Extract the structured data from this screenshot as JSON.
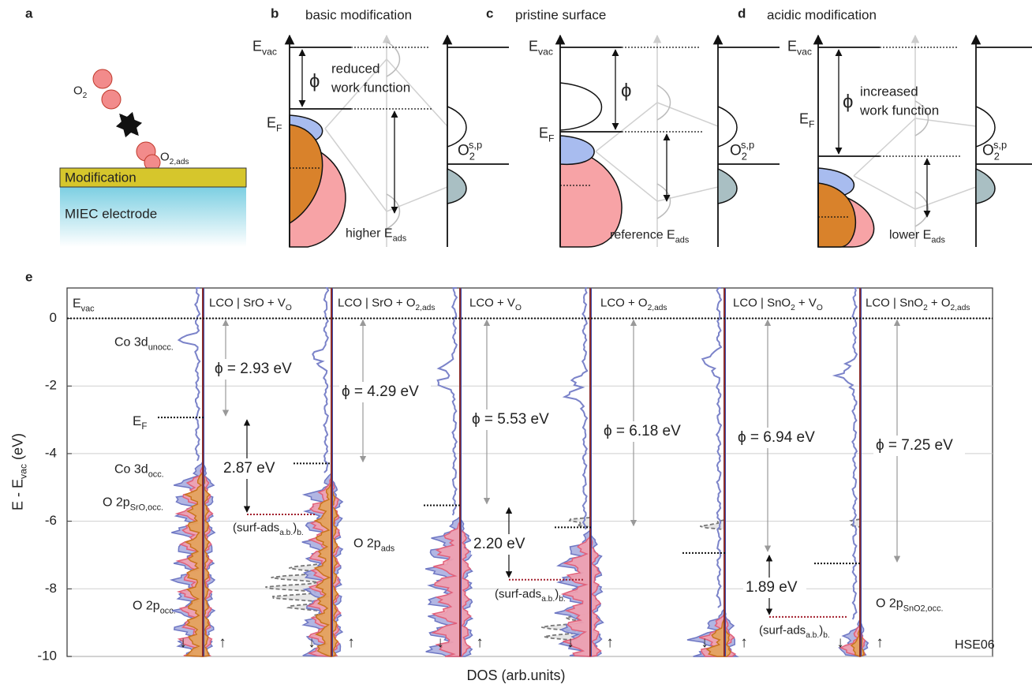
{
  "panel_a": {
    "letter": "a",
    "o2": [
      "O",
      {
        "sub": "2"
      }
    ],
    "o2_ads": [
      "O",
      {
        "sub": "2,ads"
      }
    ],
    "modification": "Modification",
    "electrode": "MIEC electrode"
  },
  "panel_b": {
    "letter": "b",
    "title": "basic modification",
    "evac": [
      "E",
      {
        "sub": "vac"
      }
    ],
    "fermi": [
      "E",
      {
        "sub": "F"
      }
    ],
    "phi": "ϕ",
    "note": [
      "reduced",
      "work function"
    ],
    "eads": [
      "higher E",
      {
        "sub": "ads"
      }
    ],
    "o2": [
      "O",
      {
        "sub": "2"
      },
      {
        "sup": "s,p"
      }
    ]
  },
  "panel_c": {
    "letter": "c",
    "title": "pristine surface",
    "evac": [
      "E",
      {
        "sub": "vac"
      }
    ],
    "fermi": [
      "E",
      {
        "sub": "F"
      }
    ],
    "phi": "ϕ",
    "eads": [
      "reference E",
      {
        "sub": "ads"
      }
    ],
    "o2": [
      "O",
      {
        "sub": "2"
      },
      {
        "sup": "s,p"
      }
    ]
  },
  "panel_d": {
    "letter": "d",
    "title": "acidic modification",
    "evac": [
      "E",
      {
        "sub": "vac"
      }
    ],
    "fermi": [
      "E",
      {
        "sub": "F"
      }
    ],
    "phi": "ϕ",
    "note": [
      "increased",
      "work function"
    ],
    "eads": [
      "lower E",
      {
        "sub": "ads"
      }
    ],
    "o2": [
      "O",
      {
        "sub": "2"
      },
      {
        "sup": "s,p"
      }
    ]
  },
  "chart_data": {
    "type": "dos",
    "letter": "e",
    "y_label": [
      "E - E",
      {
        "sub": "vac"
      },
      " (eV)"
    ],
    "x_label": "DOS (arb.units)",
    "ylim": [
      -10,
      0.9
    ],
    "yticks": [
      -10,
      -8,
      -6,
      -4,
      -2,
      0
    ],
    "grid": true,
    "vacuum_level": 0,
    "vacuum_label": [
      "E",
      {
        "sub": "vac"
      }
    ],
    "fermi_label": [
      "E",
      {
        "sub": "F"
      }
    ],
    "method": "HSE06",
    "spin_labels": [
      "↓",
      "↑"
    ],
    "state_labels": [
      {
        "text": [
          "Co 3d",
          {
            "sub": "unocc."
          }
        ],
        "color": "#6f78c4"
      },
      {
        "text": [
          "Co 3d",
          {
            "sub": "occ."
          }
        ],
        "color": "#6f78c4"
      },
      {
        "text": [
          "O 2p",
          {
            "sub": "SrO,occ."
          }
        ],
        "color": "#c9731d"
      },
      {
        "text": [
          "O 2p",
          {
            "sub": "occ."
          }
        ],
        "color": "#d9536e"
      },
      {
        "text": [
          "O 2p",
          {
            "sub": "ads"
          }
        ],
        "color": "#888888"
      },
      {
        "text": [
          "O 2p",
          {
            "sub": "SnO2,occ."
          }
        ],
        "color": "#c9731d"
      }
    ],
    "columns": [
      {
        "title": [
          "LCO | SrO + V",
          {
            "sub": "O"
          }
        ],
        "work_function": 2.93,
        "work_function_label": "ϕ = 2.93 eV",
        "fermi_level": -2.93,
        "gap": 2.87,
        "gap_label": "2.87 eV",
        "ads_level": -5.8,
        "ads_label": [
          "(surf-ads",
          {
            "sub": "a.b."
          },
          ")",
          {
            "sub": "b."
          }
        ]
      },
      {
        "title": [
          "LCO | SrO + O",
          {
            "sub": "2,ads"
          }
        ],
        "work_function": 4.29,
        "work_function_label": "ϕ = 4.29 eV",
        "fermi_level": -4.29
      },
      {
        "title": [
          "LCO + V",
          {
            "sub": "O"
          }
        ],
        "work_function": 5.53,
        "work_function_label": "ϕ = 5.53 eV",
        "fermi_level": -5.53,
        "gap": 2.2,
        "gap_label": "2.20 eV",
        "ads_level": -7.73,
        "ads_label": [
          "(surf-ads",
          {
            "sub": "a.b."
          },
          ")",
          {
            "sub": "b."
          }
        ]
      },
      {
        "title": [
          "LCO + O",
          {
            "sub": "2,ads"
          }
        ],
        "work_function": 6.18,
        "work_function_label": "ϕ = 6.18 eV",
        "fermi_level": -6.18
      },
      {
        "title": [
          "LCO | SnO",
          {
            "sub": "2"
          },
          " + V",
          {
            "sub": "O"
          }
        ],
        "work_function": 6.94,
        "work_function_label": "ϕ = 6.94 eV",
        "fermi_level": -6.94,
        "gap": 1.89,
        "gap_label": "1.89 eV",
        "ads_level": -8.83,
        "ads_label": [
          "(surf-ads",
          {
            "sub": "a.b."
          },
          ")",
          {
            "sub": "b."
          }
        ]
      },
      {
        "title": [
          "LCO | SnO",
          {
            "sub": "2"
          },
          " + O",
          {
            "sub": "2,ads"
          }
        ],
        "work_function": 7.25,
        "work_function_label": "ϕ = 7.25 eV",
        "fermi_level": -7.25
      }
    ]
  }
}
